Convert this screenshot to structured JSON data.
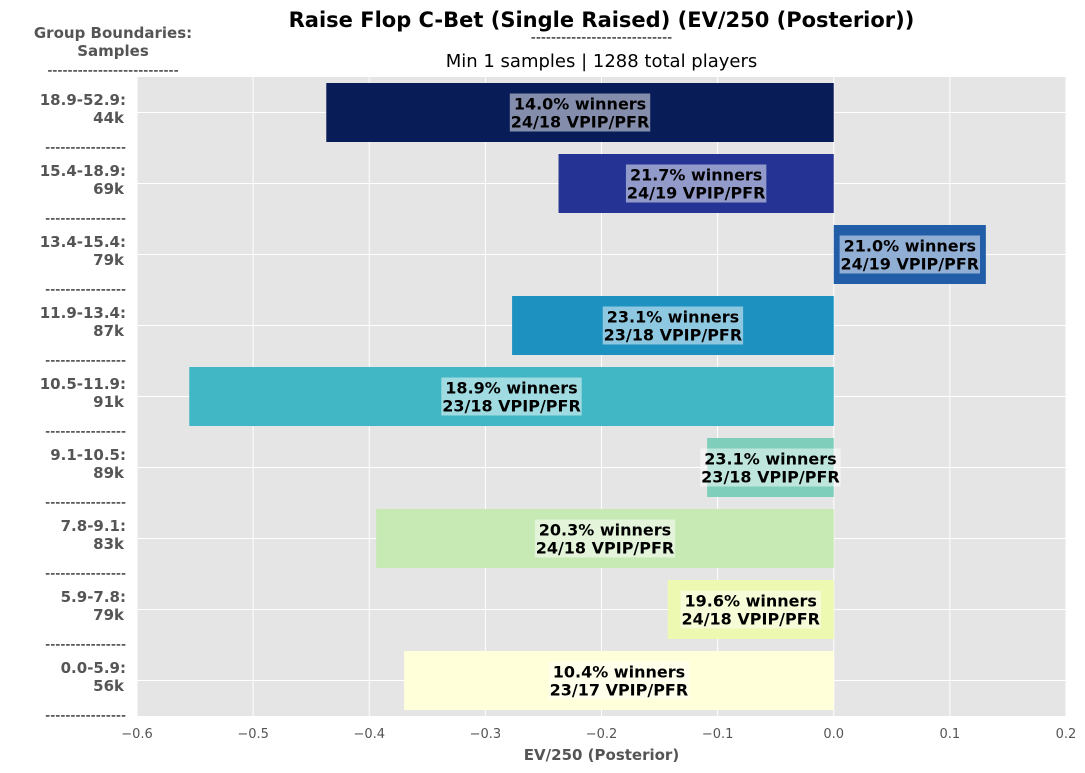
{
  "title": "Raise Flop C-Bet (Single Raised) (EV/250 (Posterior))",
  "title_rule": "----------------------------",
  "subtitle": "Min 1 samples | 1288 total players",
  "corner_label": {
    "line1": "Group Boundaries:",
    "line2": "Samples",
    "rule": "--------------------------"
  },
  "group_separator": "----------------",
  "chart_data": {
    "type": "bar",
    "orientation": "horizontal",
    "xlabel": "EV/250 (Posterior)",
    "xlim": [
      -0.6,
      0.2
    ],
    "xticks": [
      -0.6,
      -0.5,
      -0.4,
      -0.3,
      -0.2,
      -0.1,
      0.0,
      0.1,
      0.2
    ],
    "xtick_labels": [
      "−0.6",
      "−0.5",
      "−0.4",
      "−0.3",
      "−0.2",
      "−0.1",
      "0.0",
      "0.1",
      "0.2"
    ],
    "grid": true,
    "categories": [
      {
        "range": "18.9-52.9:",
        "samples": "44k",
        "value": -0.437,
        "color": "#081d58",
        "label_line1": "14.0% winners",
        "label_line2": "24/18 VPIP/PFR"
      },
      {
        "range": "15.4-18.9:",
        "samples": "69k",
        "value": -0.237,
        "color": "#253494",
        "label_line1": "21.7% winners",
        "label_line2": "24/19 VPIP/PFR"
      },
      {
        "range": "13.4-15.4:",
        "samples": "79k",
        "value": 0.131,
        "color": "#225ea8",
        "label_line1": "21.0% winners",
        "label_line2": "24/19 VPIP/PFR"
      },
      {
        "range": "11.9-13.4:",
        "samples": "87k",
        "value": -0.277,
        "color": "#1d91c0",
        "label_line1": "23.1% winners",
        "label_line2": "23/18 VPIP/PFR"
      },
      {
        "range": "10.5-11.9:",
        "samples": "91k",
        "value": -0.555,
        "color": "#41b6c4",
        "label_line1": "18.9% winners",
        "label_line2": "23/18 VPIP/PFR"
      },
      {
        "range": "9.1-10.5:",
        "samples": "89k",
        "value": -0.109,
        "color": "#7fcdbb",
        "label_line1": "23.1% winners",
        "label_line2": "23/18 VPIP/PFR"
      },
      {
        "range": "7.8-9.1:",
        "samples": "83k",
        "value": -0.394,
        "color": "#c7e9b4",
        "label_line1": "20.3% winners",
        "label_line2": "24/18 VPIP/PFR"
      },
      {
        "range": "5.9-7.8:",
        "samples": "79k",
        "value": -0.143,
        "color": "#edf8b1",
        "label_line1": "19.6% winners",
        "label_line2": "24/18 VPIP/PFR"
      },
      {
        "range": "0.0-5.9:",
        "samples": "56k",
        "value": -0.37,
        "color": "#ffffd9",
        "label_line1": "10.4% winners",
        "label_line2": "23/17 VPIP/PFR"
      }
    ]
  }
}
